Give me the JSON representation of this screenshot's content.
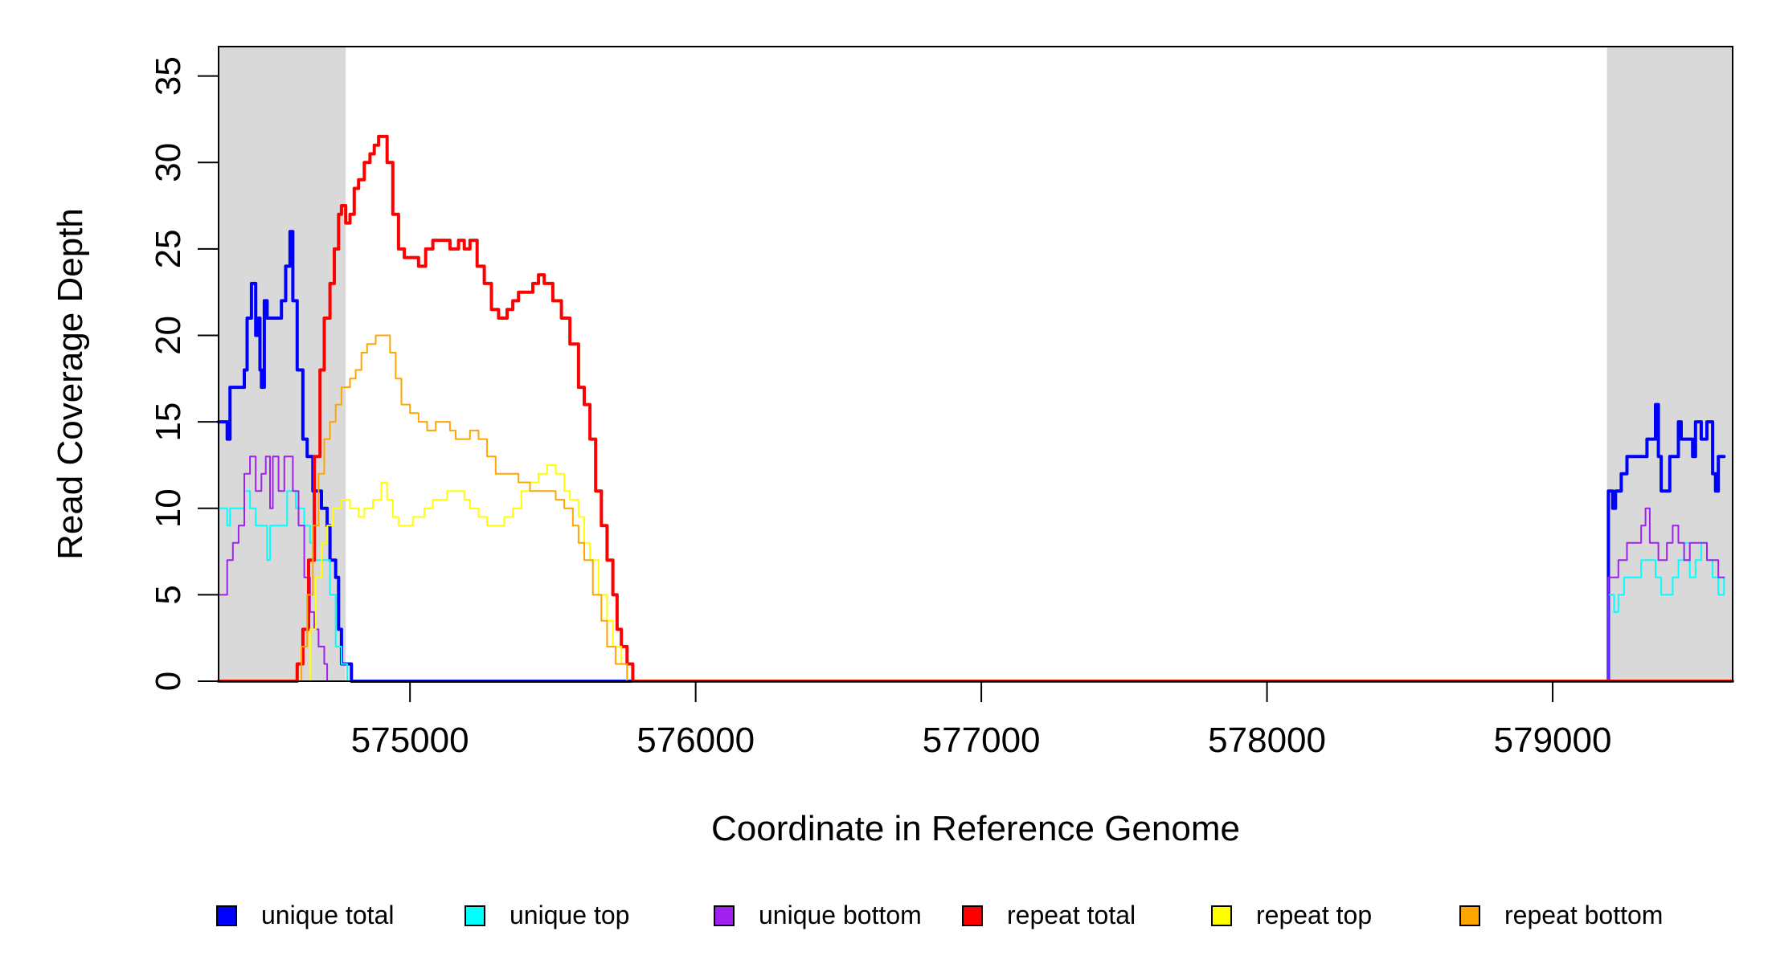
{
  "chart_data": {
    "type": "line",
    "title": "",
    "xlabel": "Coordinate in Reference Genome",
    "ylabel": "Read Coverage Depth",
    "xlim": [
      574330,
      579630
    ],
    "ylim": [
      0,
      36.7
    ],
    "x_ticks": [
      575000,
      576000,
      577000,
      578000,
      579000
    ],
    "x_tick_labels": [
      "575000",
      "576000",
      "577000",
      "578000",
      "579000"
    ],
    "y_ticks": [
      0,
      5,
      10,
      15,
      20,
      25,
      30,
      35
    ],
    "y_tick_labels": [
      "0",
      "5",
      "10",
      "15",
      "20",
      "25",
      "30",
      "35"
    ],
    "grid": false,
    "legend_position": "bottom",
    "shaded_regions": [
      {
        "x_start": 574330,
        "x_end": 574775,
        "color": "#d9d9d9"
      },
      {
        "x_start": 579190,
        "x_end": 579630,
        "color": "#d9d9d9"
      }
    ],
    "series": [
      {
        "name": "unique total",
        "color": "#0000ff",
        "width": 4,
        "points": [
          [
            574330,
            15
          ],
          [
            574360,
            14
          ],
          [
            574370,
            17
          ],
          [
            574410,
            17
          ],
          [
            574420,
            18
          ],
          [
            574430,
            21
          ],
          [
            574445,
            23
          ],
          [
            574460,
            20
          ],
          [
            574470,
            21
          ],
          [
            574475,
            18
          ],
          [
            574480,
            17
          ],
          [
            574490,
            22
          ],
          [
            574500,
            21
          ],
          [
            574545,
            21
          ],
          [
            574550,
            22
          ],
          [
            574565,
            24
          ],
          [
            574580,
            26
          ],
          [
            574590,
            22
          ],
          [
            574605,
            18
          ],
          [
            574625,
            14
          ],
          [
            574640,
            13
          ],
          [
            574660,
            11
          ],
          [
            574690,
            10
          ],
          [
            574710,
            9
          ],
          [
            574720,
            7
          ],
          [
            574740,
            6
          ],
          [
            574750,
            3
          ],
          [
            574760,
            1
          ],
          [
            574790,
            1
          ],
          [
            574795,
            0
          ],
          [
            579190,
            0
          ],
          [
            579195,
            11
          ],
          [
            579210,
            10
          ],
          [
            579220,
            11
          ],
          [
            579240,
            12
          ],
          [
            579260,
            13
          ],
          [
            579320,
            13
          ],
          [
            579330,
            14
          ],
          [
            579360,
            16
          ],
          [
            579370,
            13
          ],
          [
            579380,
            11
          ],
          [
            579400,
            11
          ],
          [
            579410,
            13
          ],
          [
            579440,
            15
          ],
          [
            579450,
            14
          ],
          [
            579470,
            14
          ],
          [
            579490,
            13
          ],
          [
            579500,
            15
          ],
          [
            579520,
            14
          ],
          [
            579540,
            15
          ],
          [
            579560,
            12
          ],
          [
            579570,
            11
          ],
          [
            579580,
            13
          ],
          [
            579600,
            13
          ]
        ]
      },
      {
        "name": "unique top",
        "color": "#00ffff",
        "width": 2,
        "points": [
          [
            574330,
            10
          ],
          [
            574360,
            9
          ],
          [
            574370,
            10
          ],
          [
            574400,
            10
          ],
          [
            574420,
            11
          ],
          [
            574440,
            10
          ],
          [
            574460,
            9
          ],
          [
            574480,
            9
          ],
          [
            574500,
            7
          ],
          [
            574510,
            9
          ],
          [
            574540,
            9
          ],
          [
            574570,
            11
          ],
          [
            574600,
            10
          ],
          [
            574630,
            9
          ],
          [
            574650,
            8
          ],
          [
            574660,
            7
          ],
          [
            574700,
            7
          ],
          [
            574720,
            5
          ],
          [
            574740,
            2
          ],
          [
            574760,
            1
          ],
          [
            574780,
            0
          ],
          [
            579190,
            0
          ],
          [
            579195,
            5
          ],
          [
            579215,
            4
          ],
          [
            579230,
            5
          ],
          [
            579250,
            6
          ],
          [
            579290,
            6
          ],
          [
            579310,
            7
          ],
          [
            579340,
            7
          ],
          [
            579360,
            6
          ],
          [
            579380,
            5
          ],
          [
            579400,
            5
          ],
          [
            579420,
            6
          ],
          [
            579440,
            7
          ],
          [
            579460,
            8
          ],
          [
            579480,
            6
          ],
          [
            579500,
            7
          ],
          [
            579520,
            8
          ],
          [
            579540,
            7
          ],
          [
            579560,
            6
          ],
          [
            579580,
            5
          ],
          [
            579600,
            6
          ]
        ]
      },
      {
        "name": "unique bottom",
        "color": "#a020f0",
        "width": 2,
        "points": [
          [
            574330,
            5
          ],
          [
            574360,
            7
          ],
          [
            574380,
            8
          ],
          [
            574400,
            9
          ],
          [
            574420,
            12
          ],
          [
            574440,
            13
          ],
          [
            574460,
            11
          ],
          [
            574480,
            12
          ],
          [
            574495,
            13
          ],
          [
            574510,
            10
          ],
          [
            574520,
            13
          ],
          [
            574540,
            11
          ],
          [
            574560,
            13
          ],
          [
            574590,
            11
          ],
          [
            574610,
            9
          ],
          [
            574630,
            6
          ],
          [
            574650,
            4
          ],
          [
            574665,
            3
          ],
          [
            574680,
            2
          ],
          [
            574700,
            1
          ],
          [
            574710,
            0
          ],
          [
            579190,
            0
          ],
          [
            579195,
            6
          ],
          [
            579230,
            7
          ],
          [
            579260,
            8
          ],
          [
            579310,
            9
          ],
          [
            579325,
            10
          ],
          [
            579340,
            8
          ],
          [
            579370,
            7
          ],
          [
            579400,
            8
          ],
          [
            579420,
            9
          ],
          [
            579440,
            8
          ],
          [
            579460,
            7
          ],
          [
            579480,
            8
          ],
          [
            579500,
            8
          ],
          [
            579520,
            8
          ],
          [
            579540,
            7
          ],
          [
            579560,
            7
          ],
          [
            579580,
            6
          ],
          [
            579600,
            6
          ]
        ]
      },
      {
        "name": "repeat total",
        "color": "#ff0000",
        "width": 4,
        "points": [
          [
            574330,
            0
          ],
          [
            574600,
            0
          ],
          [
            574605,
            1
          ],
          [
            574625,
            3
          ],
          [
            574645,
            7
          ],
          [
            574665,
            13
          ],
          [
            574685,
            18
          ],
          [
            574700,
            21
          ],
          [
            574720,
            23
          ],
          [
            574735,
            25
          ],
          [
            574750,
            27
          ],
          [
            574760,
            27.5
          ],
          [
            574775,
            26.5
          ],
          [
            574790,
            27
          ],
          [
            574805,
            28.5
          ],
          [
            574820,
            29
          ],
          [
            574840,
            30
          ],
          [
            574860,
            30.5
          ],
          [
            574875,
            31
          ],
          [
            574890,
            31.5
          ],
          [
            574905,
            31.5
          ],
          [
            574920,
            30
          ],
          [
            574940,
            27
          ],
          [
            574960,
            25
          ],
          [
            574980,
            24.5
          ],
          [
            575000,
            24.5
          ],
          [
            575030,
            24
          ],
          [
            575055,
            25
          ],
          [
            575080,
            25.5
          ],
          [
            575110,
            25.5
          ],
          [
            575140,
            25
          ],
          [
            575170,
            25.5
          ],
          [
            575190,
            25
          ],
          [
            575210,
            25.5
          ],
          [
            575235,
            24
          ],
          [
            575260,
            23
          ],
          [
            575285,
            21.5
          ],
          [
            575310,
            21
          ],
          [
            575340,
            21.5
          ],
          [
            575360,
            22
          ],
          [
            575380,
            22.5
          ],
          [
            575400,
            22.5
          ],
          [
            575430,
            23
          ],
          [
            575450,
            23.5
          ],
          [
            575470,
            23
          ],
          [
            575500,
            22
          ],
          [
            575530,
            21
          ],
          [
            575560,
            19.5
          ],
          [
            575590,
            17
          ],
          [
            575610,
            16
          ],
          [
            575630,
            14
          ],
          [
            575650,
            11
          ],
          [
            575670,
            9
          ],
          [
            575690,
            7
          ],
          [
            575710,
            5
          ],
          [
            575725,
            3
          ],
          [
            575740,
            2
          ],
          [
            575760,
            1
          ],
          [
            575780,
            0
          ],
          [
            579630,
            0
          ]
        ]
      },
      {
        "name": "repeat top",
        "color": "#ffff00",
        "width": 2,
        "points": [
          [
            574330,
            0
          ],
          [
            574620,
            0
          ],
          [
            574650,
            3
          ],
          [
            574670,
            6
          ],
          [
            574690,
            8
          ],
          [
            574710,
            9
          ],
          [
            574730,
            10
          ],
          [
            574760,
            10.5
          ],
          [
            574790,
            10
          ],
          [
            574820,
            9.5
          ],
          [
            574840,
            10
          ],
          [
            574870,
            10.5
          ],
          [
            574900,
            11.5
          ],
          [
            574920,
            10.5
          ],
          [
            574940,
            9.5
          ],
          [
            574960,
            9
          ],
          [
            574980,
            9
          ],
          [
            575010,
            9.5
          ],
          [
            575050,
            10
          ],
          [
            575080,
            10.5
          ],
          [
            575100,
            10.5
          ],
          [
            575130,
            11
          ],
          [
            575160,
            11
          ],
          [
            575190,
            10.5
          ],
          [
            575210,
            10
          ],
          [
            575240,
            9.5
          ],
          [
            575270,
            9
          ],
          [
            575300,
            9
          ],
          [
            575330,
            9.5
          ],
          [
            575360,
            10
          ],
          [
            575390,
            11
          ],
          [
            575420,
            11.5
          ],
          [
            575450,
            12
          ],
          [
            575480,
            12.5
          ],
          [
            575510,
            12
          ],
          [
            575540,
            11
          ],
          [
            575560,
            10.5
          ],
          [
            575590,
            9.5
          ],
          [
            575610,
            8
          ],
          [
            575630,
            7
          ],
          [
            575660,
            5
          ],
          [
            575690,
            3.5
          ],
          [
            575710,
            2
          ],
          [
            575740,
            1
          ],
          [
            575760,
            0
          ],
          [
            579630,
            0
          ]
        ]
      },
      {
        "name": "repeat bottom",
        "color": "#ffa500",
        "width": 2,
        "points": [
          [
            574330,
            0
          ],
          [
            574600,
            0
          ],
          [
            574620,
            2
          ],
          [
            574640,
            5
          ],
          [
            574660,
            9
          ],
          [
            574680,
            12
          ],
          [
            574700,
            14
          ],
          [
            574720,
            15
          ],
          [
            574740,
            16
          ],
          [
            574760,
            17
          ],
          [
            574790,
            17.5
          ],
          [
            574810,
            18
          ],
          [
            574830,
            19
          ],
          [
            574850,
            19.5
          ],
          [
            574880,
            20
          ],
          [
            574910,
            20
          ],
          [
            574930,
            19
          ],
          [
            574950,
            17.5
          ],
          [
            574970,
            16
          ],
          [
            575000,
            15.5
          ],
          [
            575030,
            15
          ],
          [
            575060,
            14.5
          ],
          [
            575090,
            15
          ],
          [
            575110,
            15
          ],
          [
            575140,
            14.5
          ],
          [
            575160,
            14
          ],
          [
            575180,
            14
          ],
          [
            575210,
            14.5
          ],
          [
            575240,
            14
          ],
          [
            575270,
            13
          ],
          [
            575300,
            12
          ],
          [
            575340,
            12
          ],
          [
            575380,
            11.5
          ],
          [
            575420,
            11
          ],
          [
            575450,
            11
          ],
          [
            575480,
            11
          ],
          [
            575510,
            10.5
          ],
          [
            575540,
            10
          ],
          [
            575570,
            9
          ],
          [
            575590,
            8
          ],
          [
            575610,
            7
          ],
          [
            575640,
            5
          ],
          [
            575670,
            3.5
          ],
          [
            575690,
            2
          ],
          [
            575720,
            1
          ],
          [
            575760,
            0
          ],
          [
            579630,
            0
          ]
        ]
      }
    ]
  }
}
